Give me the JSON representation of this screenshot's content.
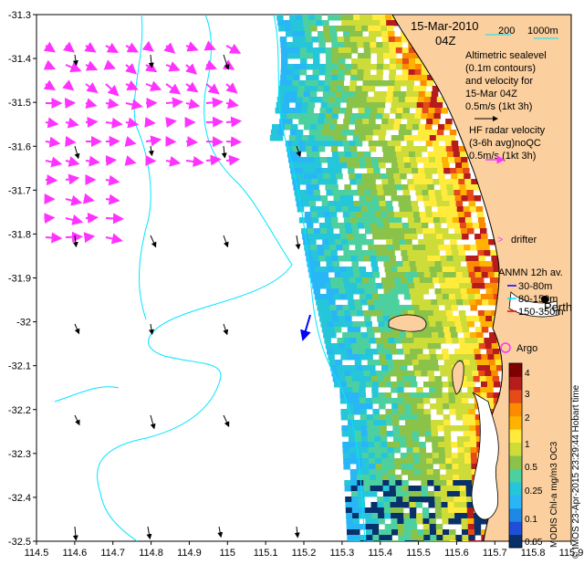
{
  "chart_data": {
    "type": "heatmap",
    "xlim": [
      114.5,
      115.9
    ],
    "ylim": [
      -32.5,
      -31.3
    ],
    "x_ticks": [
      "114.5",
      "114.6",
      "114.7",
      "114.8",
      "114.9",
      "115",
      "115.1",
      "115.2",
      "115.3",
      "115.4",
      "115.5",
      "115.6",
      "115.7",
      "115.8",
      "115.9"
    ],
    "y_ticks": [
      "-31.3",
      "-31.4",
      "-31.5",
      "-31.6",
      "-31.7",
      "-31.8",
      "-31.9",
      "-32",
      "-32.1",
      "-32.2",
      "-32.3",
      "-32.4",
      "-32.5"
    ],
    "grid": false,
    "colorbar": {
      "ticks": [
        "4",
        "3",
        "2",
        "1",
        "0.5",
        "0.25",
        "0.1",
        "0.05"
      ],
      "colors": [
        "#08306b",
        "#1f4fd8",
        "#1e88e5",
        "#29b6f6",
        "#26c6da",
        "#4dd0a0",
        "#8bc34a",
        "#cddc39",
        "#ffeb3b",
        "#ffb300",
        "#fb8c00",
        "#e64a19",
        "#b71c1c",
        "#7f0000"
      ]
    },
    "velocity_vectors": [
      {
        "x": 114.7,
        "y": -32.3,
        "u": 0.0,
        "v": -0.05
      },
      {
        "x": 114.6,
        "y": -32.0,
        "u": 0.01,
        "v": -0.04
      }
    ],
    "chlorophyll_note": "MODIS Chl-a mg/m3 OC3"
  },
  "title": {
    "date": "15-Mar-2010",
    "time": "04Z"
  },
  "legend": {
    "contour_200": "200",
    "contour_1000": "1000m",
    "altimetric_l1": "Altimetric sealevel",
    "altimetric_l2": "(0.1m contours)",
    "altimetric_l3": "and velocity for",
    "altimetric_l4": "15-Mar 04Z",
    "altimetric_l5": "0.5m/s (1kt 3h)",
    "hf_l1": "HF radar velocity",
    "hf_l2": "(3-6h avg)noQC",
    "hf_l3": "0.5m/s (1kt 3h)",
    "drifter": "drifter",
    "anmn": "ANMN 12h av.",
    "anmn_1": "30-80m",
    "anmn_2": "80-150m",
    "anmn_3": "150-350m",
    "perth": "Perth",
    "argo": "Argo",
    "colorbar_label": "MODIS Chl-a mg/m3 OC3",
    "credit": "© IMOS 23-Apr-2015 23:29:44 Hobart time"
  },
  "colors": {
    "land": "#fbcf9e",
    "contour": "#00e5ff",
    "hf_radar": "#ff33ff",
    "altimetric_arrow": "#000000",
    "anmn_1": "#0000ff",
    "anmn_2": "#00e5ff",
    "anmn_3": "#ff0000"
  }
}
